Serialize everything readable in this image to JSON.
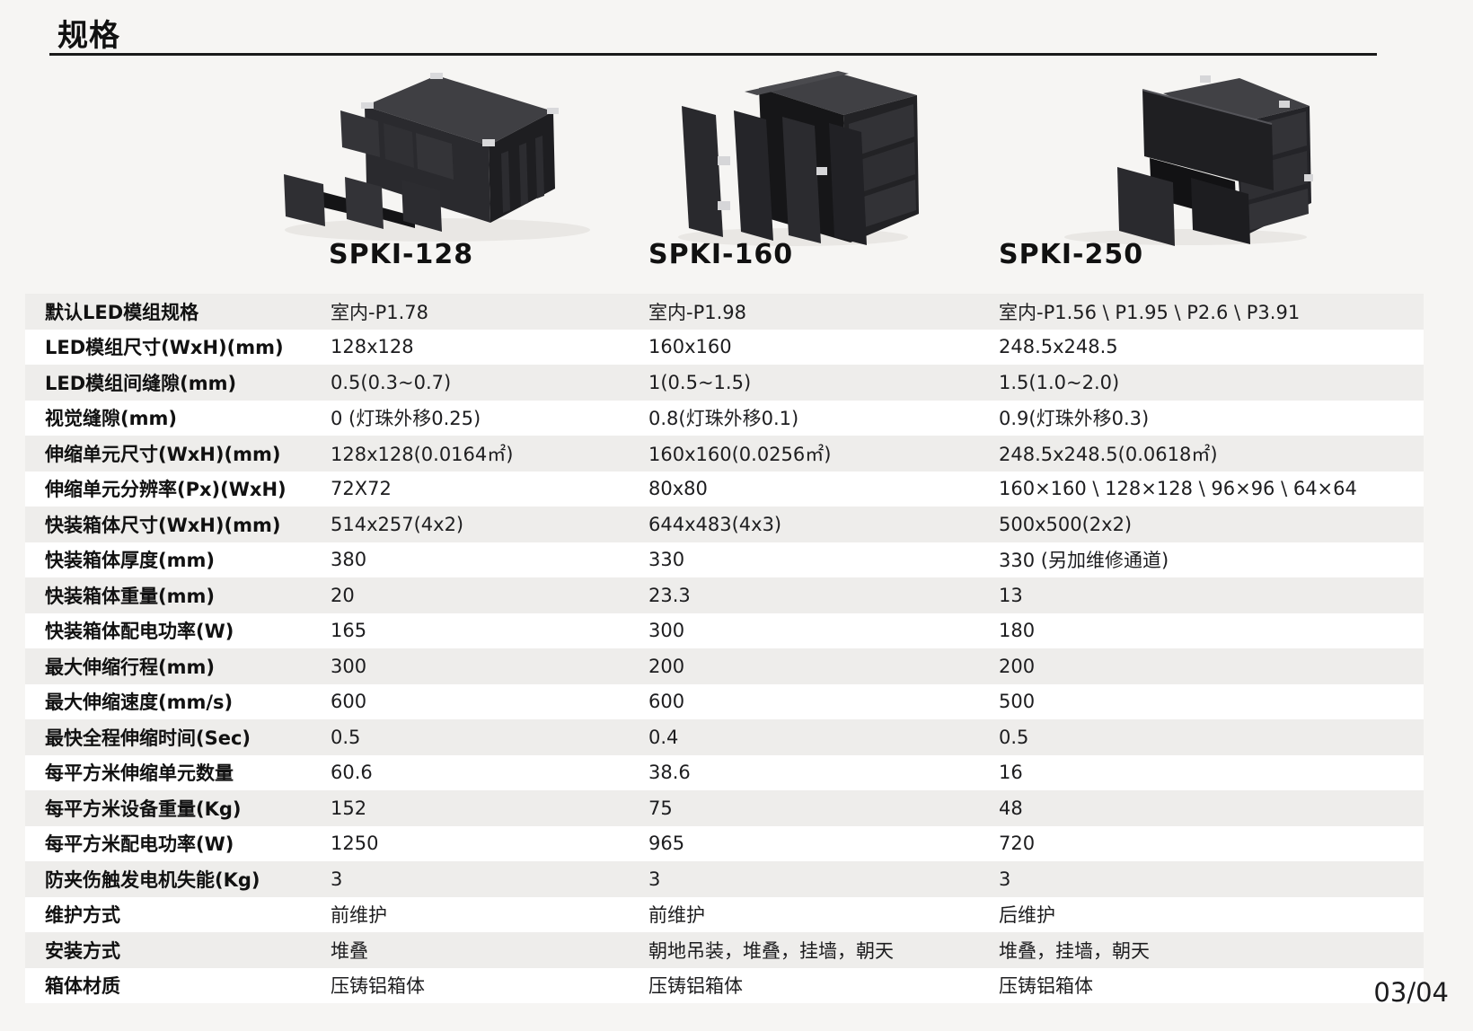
{
  "title": "规格",
  "page_number": "03/04",
  "colors": {
    "page_bg": "#f6f5f3",
    "row_stripe": "#eeedeb",
    "row_white": "#ffffff",
    "text": "#141414",
    "rule": "#1a1a1a"
  },
  "products": [
    {
      "name": "SPKI-128"
    },
    {
      "name": "SPKI-160"
    },
    {
      "name": "SPKI-250"
    }
  ],
  "table": {
    "columns": [
      "SPKI-128",
      "SPKI-160",
      "SPKI-250"
    ],
    "rows": [
      {
        "label": "默认LED模组规格",
        "values": [
          "室内-P1.78",
          "室内-P1.98",
          "室内-P1.56 \\ P1.95 \\ P2.6 \\ P3.91"
        ]
      },
      {
        "label": "LED模组尺寸(WxH)(mm)",
        "values": [
          "128x128",
          "160x160",
          "248.5x248.5"
        ]
      },
      {
        "label": "LED模组间缝隙(mm)",
        "values": [
          "0.5(0.3~0.7)",
          "1(0.5~1.5)",
          "1.5(1.0~2.0)"
        ]
      },
      {
        "label": "视觉缝隙(mm)",
        "values": [
          "0 (灯珠外移0.25)",
          "0.8(灯珠外移0.1)",
          "0.9(灯珠外移0.3)"
        ]
      },
      {
        "label": "伸缩单元尺寸(WxH)(mm)",
        "values": [
          "128x128(0.0164㎡)",
          "160x160(0.0256㎡)",
          "248.5x248.5(0.0618㎡)"
        ]
      },
      {
        "label": "伸缩单元分辨率(Px)(WxH)",
        "values": [
          "72X72",
          "80x80",
          "160×160 \\ 128×128 \\ 96×96 \\ 64×64"
        ]
      },
      {
        "label": "快装箱体尺寸(WxH)(mm)",
        "values": [
          "514x257(4x2)",
          "644x483(4x3)",
          "500x500(2x2)"
        ]
      },
      {
        "label": "快装箱体厚度(mm)",
        "values": [
          "380",
          "330",
          "330 (另加维修通道)"
        ]
      },
      {
        "label": "快装箱体重量(mm)",
        "values": [
          "20",
          "23.3",
          "13"
        ]
      },
      {
        "label": "快装箱体配电功率(W)",
        "values": [
          "165",
          "300",
          "180"
        ]
      },
      {
        "label": "最大伸缩行程(mm)",
        "values": [
          "300",
          "200",
          "200"
        ]
      },
      {
        "label": "最大伸缩速度(mm/s)",
        "values": [
          "600",
          "600",
          "500"
        ]
      },
      {
        "label": "最快全程伸缩时间(Sec)",
        "values": [
          "0.5",
          "0.4",
          "0.5"
        ]
      },
      {
        "label": "每平方米伸缩单元数量",
        "values": [
          "60.6",
          "38.6",
          "16"
        ]
      },
      {
        "label": "每平方米设备重量(Kg)",
        "values": [
          "152",
          "75",
          "48"
        ]
      },
      {
        "label": "每平方米配电功率(W)",
        "values": [
          "1250",
          "965",
          "720"
        ]
      },
      {
        "label": "防夹伤触发电机失能(Kg)",
        "values": [
          "3",
          "3",
          "3"
        ]
      },
      {
        "label": "维护方式",
        "values": [
          "前维护",
          "前维护",
          "后维护"
        ]
      },
      {
        "label": "安装方式",
        "values": [
          "堆叠",
          "朝地吊装，堆叠，挂墙，朝天",
          "堆叠，挂墙，朝天"
        ]
      },
      {
        "label": "箱体材质",
        "values": [
          "压铸铝箱体",
          "压铸铝箱体",
          "压铸铝箱体"
        ]
      }
    ]
  }
}
